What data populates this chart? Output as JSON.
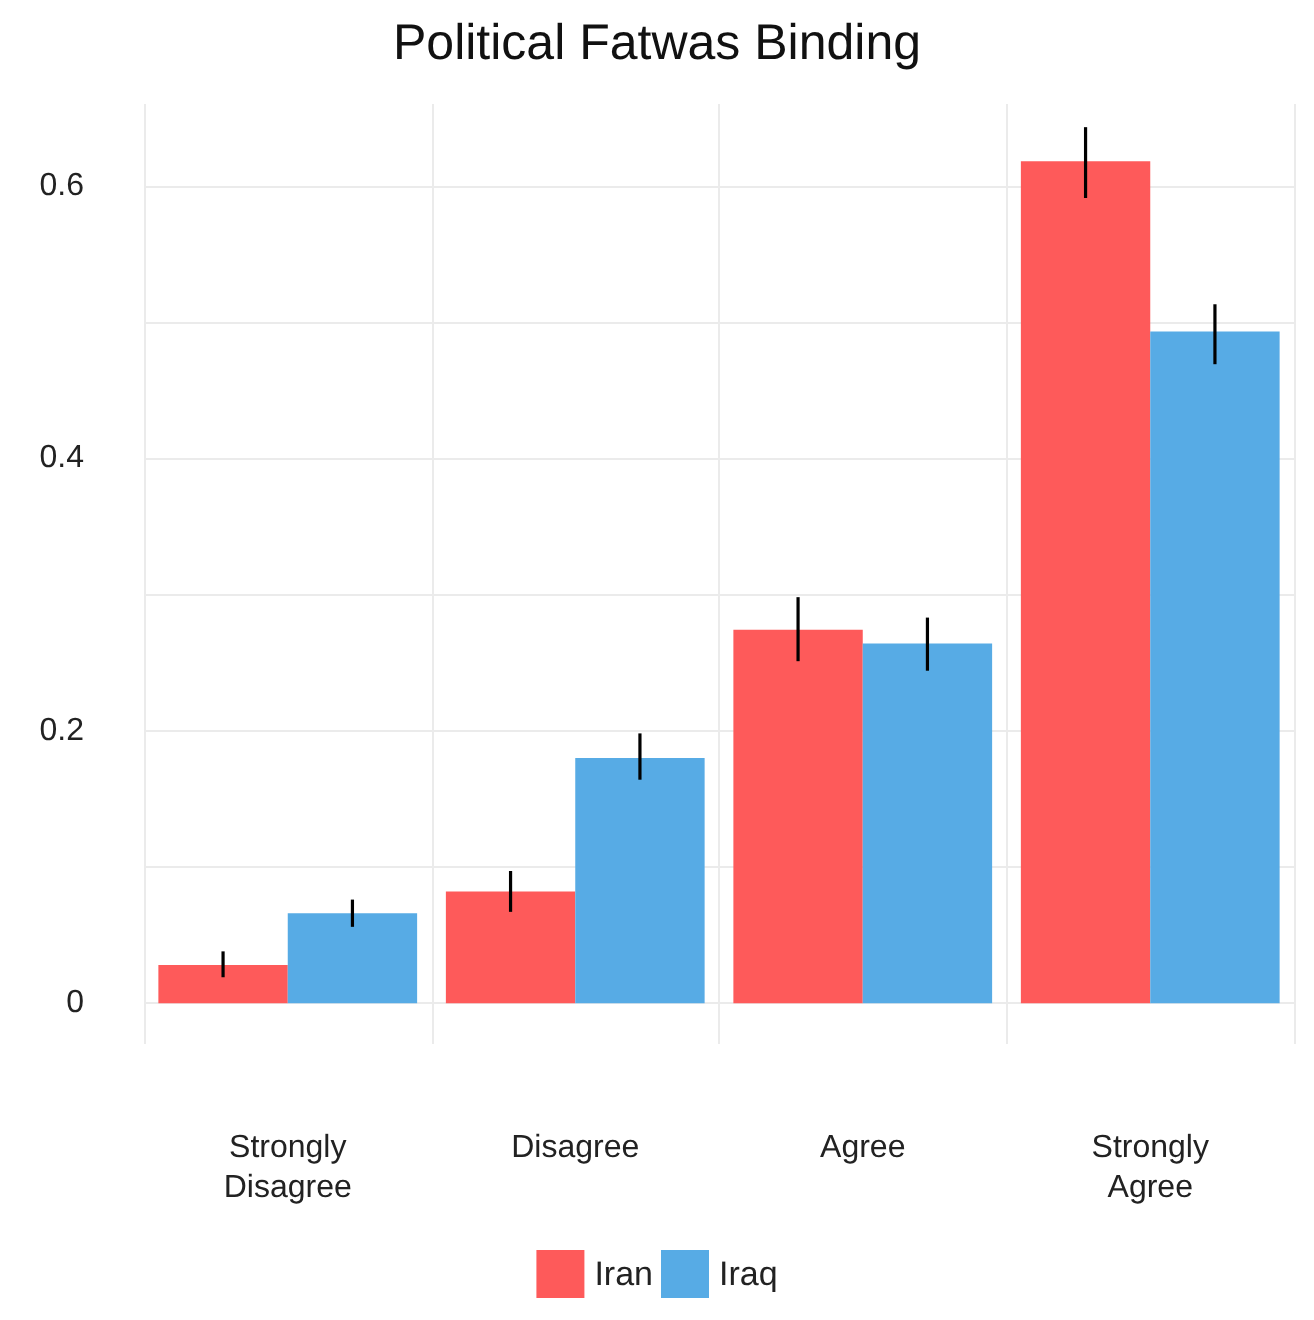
{
  "chart_data": {
    "type": "bar",
    "title": "Political Fatwas Binding",
    "categories": [
      "Strongly\nDisagree",
      "Disagree",
      "Agree",
      "Strongly\nAgree"
    ],
    "series": [
      {
        "name": "Iran",
        "color": "#fe5a5a",
        "values": [
          0.028,
          0.082,
          0.274,
          0.618
        ],
        "errors": [
          [
            0.019,
            0.038
          ],
          [
            0.067,
            0.097
          ],
          [
            0.251,
            0.298
          ],
          [
            0.591,
            0.643
          ]
        ]
      },
      {
        "name": "Iraq",
        "color": "#57abe5",
        "values": [
          0.066,
          0.18,
          0.264,
          0.493
        ],
        "errors": [
          [
            0.056,
            0.076
          ],
          [
            0.164,
            0.198
          ],
          [
            0.244,
            0.283
          ],
          [
            0.469,
            0.513
          ]
        ]
      }
    ],
    "ylim": [
      -0.03,
      0.66
    ],
    "yticks": [
      0,
      {
        "value": 0.1,
        "label": null
      },
      0.2,
      {
        "value": 0.3,
        "label": null
      },
      0.4,
      {
        "value": 0.5,
        "label": null
      },
      0.6
    ],
    "grid": true,
    "legend": "bottom"
  }
}
